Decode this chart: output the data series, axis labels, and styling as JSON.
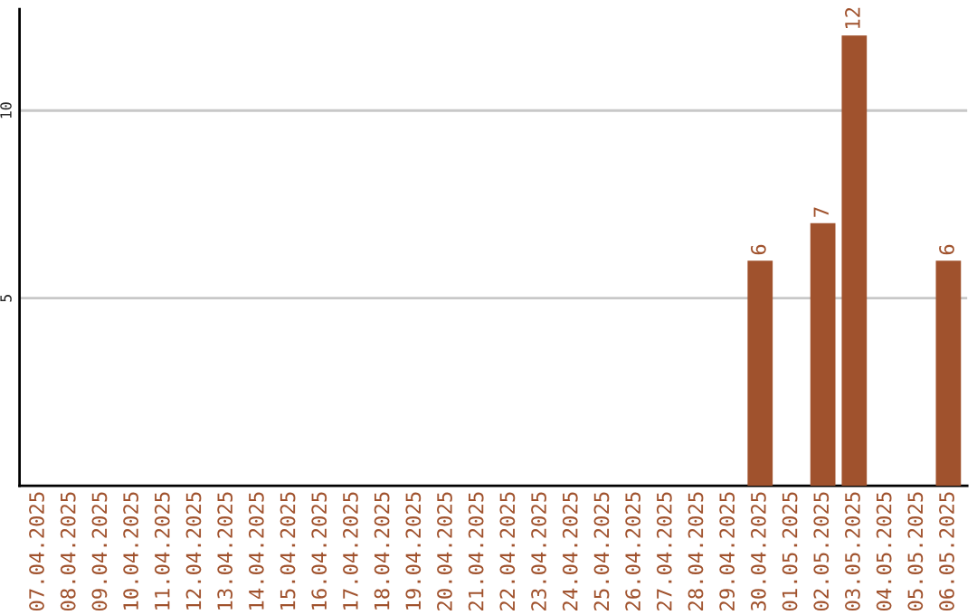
{
  "chart_data": {
    "type": "bar",
    "categories": [
      "07.04.2025",
      "08.04.2025",
      "09.04.2025",
      "10.04.2025",
      "11.04.2025",
      "12.04.2025",
      "13.04.2025",
      "14.04.2025",
      "15.04.2025",
      "16.04.2025",
      "17.04.2025",
      "18.04.2025",
      "19.04.2025",
      "20.04.2025",
      "21.04.2025",
      "22.04.2025",
      "23.04.2025",
      "24.04.2025",
      "25.04.2025",
      "26.04.2025",
      "27.04.2025",
      "28.04.2025",
      "29.04.2025",
      "30.04.2025",
      "01.05.2025",
      "02.05.2025",
      "03.05.2025",
      "04.05.2025",
      "05.05.2025",
      "06.05.2025"
    ],
    "values": [
      null,
      null,
      null,
      null,
      null,
      null,
      null,
      null,
      null,
      null,
      null,
      null,
      null,
      null,
      null,
      null,
      null,
      null,
      null,
      null,
      null,
      null,
      null,
      6,
      null,
      7,
      12,
      null,
      null,
      6
    ],
    "value_labels": [
      null,
      null,
      null,
      null,
      null,
      null,
      null,
      null,
      null,
      null,
      null,
      null,
      null,
      null,
      null,
      null,
      null,
      null,
      null,
      null,
      null,
      null,
      null,
      "6",
      null,
      "7",
      "12",
      null,
      null,
      "6"
    ],
    "color": "#a0522d",
    "ylim": [
      0,
      12.7
    ],
    "yticks": [
      5,
      10
    ],
    "grid": "y",
    "legend": false
  }
}
